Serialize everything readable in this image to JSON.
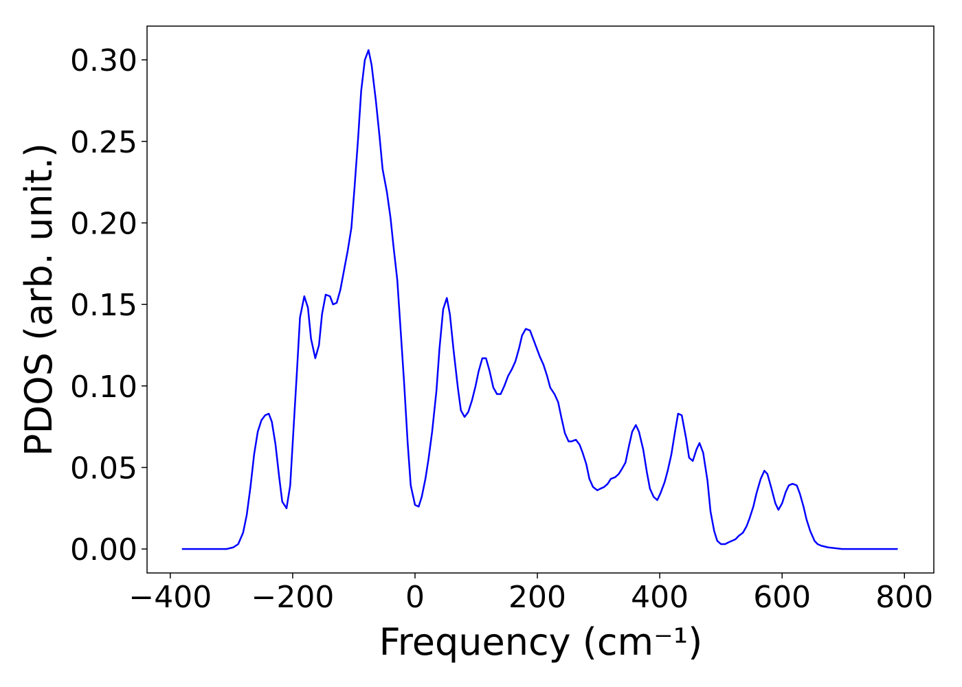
{
  "chart_data": {
    "type": "line",
    "xlabel": "Frequency (cm⁻¹)",
    "ylabel": "PDOS (arb. unit.)",
    "x": [
      -381,
      -308,
      -297,
      -289,
      -281,
      -275,
      -269,
      -263,
      -257,
      -251,
      -245,
      -239,
      -234,
      -228,
      -222,
      -217,
      -210,
      -204,
      -199,
      -193,
      -188,
      -181,
      -175,
      -170,
      -163,
      -157,
      -152,
      -146,
      -139,
      -134,
      -128,
      -122,
      -116,
      -110,
      -104,
      -99,
      -93,
      -88,
      -82,
      -76,
      -71,
      -64,
      -58,
      -53,
      -46,
      -40,
      -35,
      -29,
      -24,
      -18,
      -12,
      -7,
      0,
      6,
      11,
      17,
      22,
      28,
      35,
      40,
      46,
      52,
      57,
      63,
      70,
      75,
      81,
      87,
      93,
      99,
      104,
      110,
      116,
      122,
      128,
      134,
      140,
      146,
      152,
      158,
      164,
      170,
      175,
      181,
      188,
      193,
      199,
      204,
      210,
      216,
      221,
      228,
      234,
      239,
      245,
      251,
      256,
      263,
      269,
      274,
      280,
      285,
      291,
      298,
      303,
      309,
      315,
      320,
      327,
      333,
      338,
      344,
      349,
      355,
      361,
      366,
      373,
      379,
      384,
      390,
      396,
      401,
      408,
      413,
      419,
      425,
      430,
      436,
      443,
      448,
      454,
      460,
      465,
      471,
      478,
      483,
      489,
      494,
      500,
      507,
      512,
      518,
      524,
      529,
      536,
      542,
      547,
      553,
      558,
      565,
      571,
      576,
      582,
      589,
      594,
      600,
      606,
      611,
      617,
      624,
      629,
      635,
      640,
      646,
      653,
      658,
      664,
      675,
      698,
      789
    ],
    "series": [
      {
        "name": "PDOS",
        "color": "#0000ff",
        "values": [
          0,
          0,
          0.001,
          0.003,
          0.01,
          0.021,
          0.038,
          0.058,
          0.072,
          0.079,
          0.082,
          0.083,
          0.078,
          0.064,
          0.044,
          0.029,
          0.025,
          0.039,
          0.071,
          0.109,
          0.142,
          0.155,
          0.148,
          0.129,
          0.117,
          0.125,
          0.144,
          0.156,
          0.155,
          0.15,
          0.151,
          0.159,
          0.171,
          0.183,
          0.197,
          0.221,
          0.252,
          0.281,
          0.3,
          0.306,
          0.297,
          0.275,
          0.253,
          0.233,
          0.219,
          0.203,
          0.185,
          0.165,
          0.137,
          0.103,
          0.065,
          0.039,
          0.027,
          0.026,
          0.032,
          0.043,
          0.055,
          0.072,
          0.097,
          0.123,
          0.147,
          0.154,
          0.144,
          0.122,
          0.099,
          0.085,
          0.081,
          0.084,
          0.091,
          0.1,
          0.109,
          0.117,
          0.117,
          0.109,
          0.099,
          0.095,
          0.095,
          0.1,
          0.106,
          0.11,
          0.115,
          0.123,
          0.131,
          0.135,
          0.134,
          0.129,
          0.123,
          0.118,
          0.113,
          0.106,
          0.099,
          0.095,
          0.09,
          0.081,
          0.071,
          0.066,
          0.066,
          0.067,
          0.064,
          0.059,
          0.052,
          0.043,
          0.038,
          0.036,
          0.037,
          0.038,
          0.04,
          0.043,
          0.044,
          0.046,
          0.049,
          0.053,
          0.062,
          0.072,
          0.076,
          0.072,
          0.061,
          0.047,
          0.037,
          0.032,
          0.03,
          0.034,
          0.041,
          0.048,
          0.058,
          0.072,
          0.083,
          0.082,
          0.068,
          0.056,
          0.054,
          0.061,
          0.065,
          0.059,
          0.042,
          0.023,
          0.011,
          0.005,
          0.003,
          0.003,
          0.004,
          0.005,
          0.006,
          0.008,
          0.01,
          0.014,
          0.019,
          0.026,
          0.034,
          0.043,
          0.048,
          0.046,
          0.038,
          0.028,
          0.024,
          0.028,
          0.035,
          0.039,
          0.04,
          0.039,
          0.034,
          0.026,
          0.018,
          0.011,
          0.005,
          0.003,
          0.002,
          0.001,
          0,
          0
        ]
      }
    ],
    "xlim": [
      -438,
      848
    ],
    "ylim": [
      -0.0147,
      0.3207
    ],
    "xticks": [
      {
        "value": -400,
        "label": "−400"
      },
      {
        "value": -200,
        "label": "−200"
      },
      0,
      200,
      400,
      600,
      800
    ],
    "yticks": [
      {
        "value": 0,
        "label": "0.00"
      },
      {
        "value": 0.05,
        "label": "0.05"
      },
      {
        "value": 0.1,
        "label": "0.10"
      },
      {
        "value": 0.15,
        "label": "0.15"
      },
      {
        "value": 0.2,
        "label": "0.20"
      },
      {
        "value": 0.25,
        "label": "0.25"
      },
      {
        "value": 0.3,
        "label": "0.30"
      }
    ],
    "grid": false
  }
}
